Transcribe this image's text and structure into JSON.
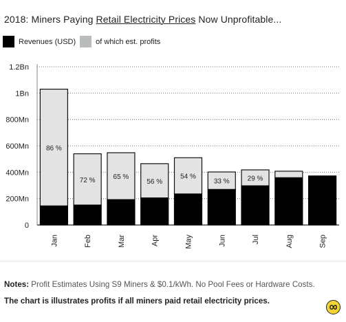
{
  "title": {
    "prefix": "2018: Miners Paying ",
    "underlined": "Retail Electricity Prices",
    "suffix": " Now Unprofitable..."
  },
  "colors": {
    "revenue": "#000000",
    "profit": "#e3e3e3",
    "profit_legend": "#b8bcbc",
    "grid": "#7a7a7a",
    "badge": "#f2d437"
  },
  "chart_data": {
    "type": "bar",
    "categories": [
      "Jan",
      "Feb",
      "Mar",
      "Apr",
      "May",
      "Jun",
      "Jul",
      "Aug",
      "Sep"
    ],
    "series": [
      {
        "name": "Revenues (USD)",
        "values": [
          1030,
          540,
          548,
          465,
          510,
          402,
          418,
          408,
          372
        ]
      },
      {
        "name": "of which est. profits",
        "values": [
          886,
          389,
          356,
          260,
          275,
          133,
          121,
          50,
          0
        ]
      }
    ],
    "data_labels": [
      "86 %",
      "72 %",
      "65 %",
      "56 %",
      "54 %",
      "33 %",
      "29 %",
      "",
      ""
    ],
    "yticks": [
      0,
      200,
      400,
      600,
      800,
      1000,
      1200
    ],
    "ytick_labels": [
      "0",
      "200Mn",
      "400Mn",
      "600Mn",
      "800Mn",
      "1Bn",
      "1.2Bn"
    ],
    "ylim": [
      0,
      1200
    ],
    "grid": "horizontal dotted",
    "legend": "top-left"
  },
  "notes": {
    "label": "Notes:",
    "text": " Profit Estimates Using S9 Miners & $0.1/kWh. No Pool Fees or Hardware Costs.",
    "bold": " The chart is illustrates profits if all miners paid retail electricity prices."
  },
  "badge_icon": "logo-icon"
}
